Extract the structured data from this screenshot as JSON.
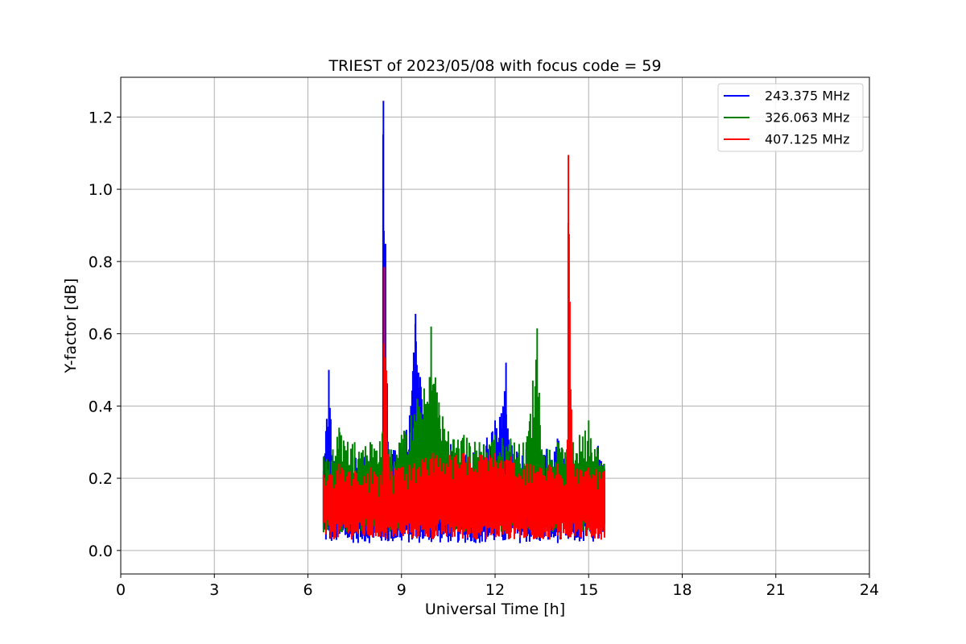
{
  "chart_data": {
    "type": "line",
    "title": "TRIEST of 2023/05/08 with focus code = 59",
    "xlabel": "Universal Time [h]",
    "ylabel": "Y-factor [dB]",
    "xlim": [
      0,
      24
    ],
    "ylim": [
      -0.065,
      1.31
    ],
    "xticks": [
      0,
      3,
      6,
      9,
      12,
      15,
      18,
      21,
      24
    ],
    "yticks": [
      0.0,
      0.2,
      0.4,
      0.6,
      0.8,
      1.0,
      1.2
    ],
    "ytick_labels": [
      "0.0",
      "0.2",
      "0.4",
      "0.6",
      "0.8",
      "1.0",
      "1.2"
    ],
    "grid": true,
    "legend_position": "top-right",
    "x_range_of_data": [
      6.5,
      15.5
    ],
    "series": [
      {
        "name": "243.375 MHz",
        "color": "#0000ff",
        "x": [
          6.5,
          6.67,
          6.8,
          7.0,
          7.5,
          8.0,
          8.4,
          8.42,
          8.6,
          9.0,
          9.3,
          9.45,
          9.6,
          9.8,
          10.0,
          10.5,
          11.0,
          11.5,
          12.0,
          12.2,
          12.35,
          12.5,
          13.0,
          13.5,
          14.0,
          14.3,
          14.5,
          15.0,
          15.3,
          15.5
        ],
        "values": [
          0.22,
          0.5,
          0.26,
          0.25,
          0.26,
          0.27,
          0.28,
          1.245,
          0.28,
          0.28,
          0.4,
          0.655,
          0.48,
          0.3,
          0.32,
          0.3,
          0.28,
          0.28,
          0.36,
          0.38,
          0.52,
          0.3,
          0.28,
          0.27,
          0.31,
          0.26,
          0.25,
          0.25,
          0.29,
          0.23
        ]
      },
      {
        "name": "326.063 MHz",
        "color": "#008000",
        "x": [
          6.5,
          6.8,
          7.0,
          7.5,
          8.0,
          8.4,
          8.6,
          9.0,
          9.5,
          9.9,
          9.95,
          10.2,
          10.5,
          11.0,
          11.5,
          12.0,
          12.5,
          13.0,
          13.35,
          13.5,
          14.0,
          14.3,
          14.5,
          15.0,
          15.5
        ],
        "values": [
          0.26,
          0.28,
          0.34,
          0.3,
          0.3,
          0.33,
          0.28,
          0.32,
          0.42,
          0.48,
          0.62,
          0.41,
          0.33,
          0.32,
          0.3,
          0.32,
          0.31,
          0.3,
          0.615,
          0.28,
          0.3,
          0.28,
          0.3,
          0.36,
          0.24
        ]
      },
      {
        "name": "407.125 MHz",
        "color": "#ff0000",
        "x": [
          6.5,
          7.0,
          7.5,
          8.0,
          8.4,
          8.45,
          8.6,
          9.0,
          10.0,
          11.0,
          12.0,
          12.5,
          13.0,
          14.0,
          14.3,
          14.35,
          14.5,
          15.0,
          15.5
        ],
        "values": [
          0.21,
          0.24,
          0.22,
          0.23,
          0.22,
          0.785,
          0.23,
          0.23,
          0.27,
          0.27,
          0.27,
          0.26,
          0.24,
          0.24,
          0.25,
          1.095,
          0.24,
          0.23,
          0.22
        ]
      }
    ]
  }
}
